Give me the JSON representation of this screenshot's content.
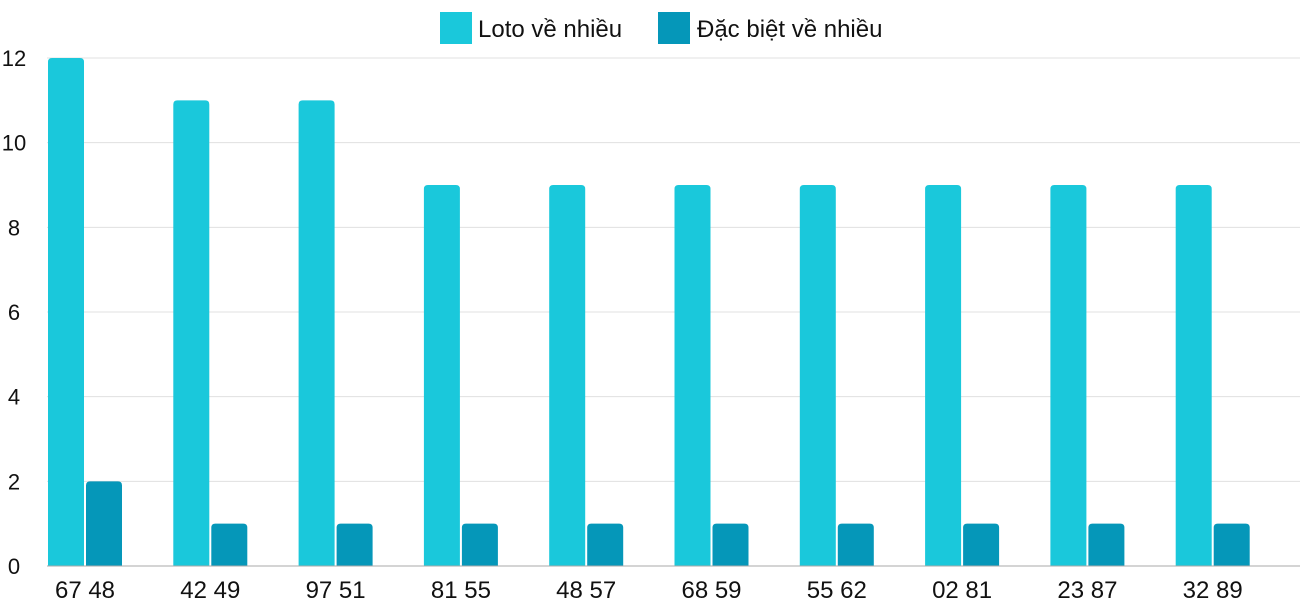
{
  "chart_data": {
    "type": "bar",
    "title": "",
    "xlabel": "",
    "ylabel": "",
    "categories": [
      "67 48",
      "42 49",
      "97 51",
      "81 55",
      "48 57",
      "68 59",
      "55 62",
      "02 81",
      "23 87",
      "32 89"
    ],
    "series": [
      {
        "name": "Loto về nhiều",
        "color": "#1ac8db",
        "values": [
          12,
          11,
          11,
          9,
          9,
          9,
          9,
          9,
          9,
          9
        ]
      },
      {
        "name": "Đặc biệt về nhiều",
        "color": "#0597b9",
        "values": [
          2,
          1,
          1,
          1,
          1,
          1,
          1,
          1,
          1,
          1
        ]
      }
    ],
    "ylim": [
      0,
      12
    ],
    "yticks": [
      0,
      2,
      4,
      6,
      8,
      10,
      12
    ],
    "grid": true,
    "legend_position": "top-center"
  }
}
